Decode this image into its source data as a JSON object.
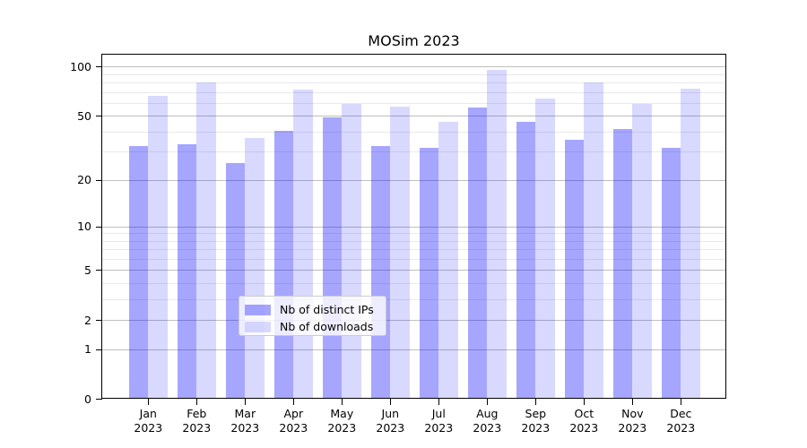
{
  "title": "MOSim 2023",
  "chart_data": {
    "type": "bar",
    "title": "MOSim 2023",
    "categories": [
      "Jan 2023",
      "Feb 2023",
      "Mar 2023",
      "Apr 2023",
      "May 2023",
      "Jun 2023",
      "Jul 2023",
      "Aug 2023",
      "Sep 2023",
      "Oct 2023",
      "Nov 2023",
      "Dec 2023"
    ],
    "series": [
      {
        "name": "Nb of distinct IPs",
        "color": "rgba(0,0,255,0.35)",
        "values": [
          32,
          33,
          25,
          40,
          48,
          32,
          31,
          55,
          45,
          35,
          41,
          31
        ]
      },
      {
        "name": "Nb of downloads",
        "color": "rgba(0,0,255,0.15)",
        "values": [
          65,
          79,
          36,
          71,
          58,
          56,
          45,
          94,
          63,
          79,
          58,
          72
        ]
      }
    ],
    "xlabel": "",
    "ylabel": "",
    "yscale": "log-like (position proportional to log10(1+y))",
    "ylim": [
      0,
      118
    ],
    "ytick_values": [
      0,
      1,
      2,
      5,
      10,
      20,
      50,
      100
    ],
    "ytick_labels": [
      "0",
      "1",
      "2",
      "5",
      "10",
      "20",
      "50",
      "100"
    ],
    "minor_gridline_values": [
      3,
      4,
      6,
      7,
      8,
      9,
      30,
      40,
      60,
      70,
      80,
      90
    ],
    "grid": "horizontal major + minor gridlines",
    "legend_position": "lower center inside axes",
    "bar_group_width_ratio": 0.8
  },
  "colors": {
    "background": "#ffffff",
    "spine": "#000000",
    "major_grid": "#bfbfbf",
    "minor_grid": "#e9e9e9",
    "text": "#000000",
    "series_ips": "rgba(0,0,255,0.35)",
    "series_downloads": "rgba(0,0,255,0.15)"
  }
}
